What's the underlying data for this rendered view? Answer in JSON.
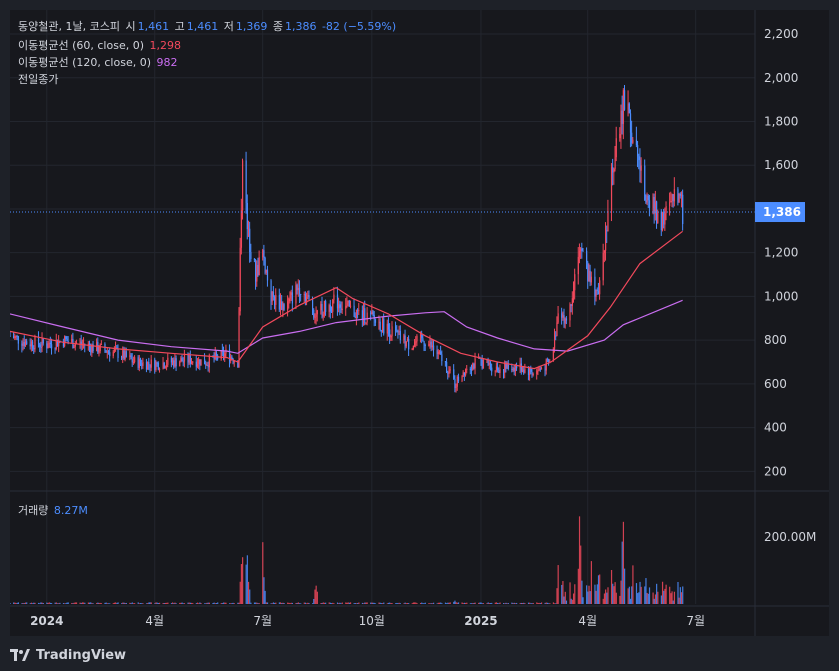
{
  "legend": {
    "title": "동양철관, 1날, 코스피",
    "open_label": "시",
    "open": "1,461",
    "high_label": "고",
    "high": "1,461",
    "low_label": "저",
    "low": "1,369",
    "close_label": "종",
    "close": "1,386",
    "change": "-82 (−5.59%)",
    "ma60_label": "이동평균선 (60, close, 0)",
    "ma60_value": "1,298",
    "ma120_label": "이동평균선 (120, close, 0)",
    "ma120_value": "982",
    "prev_close_label": "전일종가",
    "volume_label": "거래량",
    "volume_value": "8.27M"
  },
  "price_tag": "1,386",
  "footer": {
    "brand": "TradingView"
  },
  "colors": {
    "up": "#f2495c",
    "down": "#4c8dff",
    "ma60": "#f2495c",
    "ma120": "#c96df0",
    "background": "#17181d"
  },
  "chart_data": {
    "type": "candlestick",
    "x_ticks": [
      "2024",
      "4월",
      "7월",
      "10월",
      "2025",
      "4월",
      "7월"
    ],
    "y_ticks": [
      "200",
      "400",
      "600",
      "800",
      "1,000",
      "1,200",
      "1,400",
      "1,600",
      "1,800",
      "2,000",
      "2,200"
    ],
    "ylim": [
      110,
      2310
    ],
    "volume_tick": "200.00M",
    "price_series": [
      [
        "2023-12-01",
        820
      ],
      [
        "2023-12-15",
        790
      ],
      [
        "2024-01-01",
        780
      ],
      [
        "2024-01-15",
        800
      ],
      [
        "2024-02-01",
        780
      ],
      [
        "2024-02-15",
        760
      ],
      [
        "2024-03-01",
        740
      ],
      [
        "2024-03-15",
        700
      ],
      [
        "2024-04-01",
        690
      ],
      [
        "2024-04-15",
        700
      ],
      [
        "2024-05-01",
        710
      ],
      [
        "2024-05-15",
        700
      ],
      [
        "2024-06-01",
        740
      ],
      [
        "2024-06-10",
        700
      ],
      [
        "2024-06-14",
        1680
      ],
      [
        "2024-06-18",
        1300
      ],
      [
        "2024-06-25",
        1100
      ],
      [
        "2024-07-01",
        1200
      ],
      [
        "2024-07-08",
        1000
      ],
      [
        "2024-07-20",
        950
      ],
      [
        "2024-08-01",
        1050
      ],
      [
        "2024-08-15",
        920
      ],
      [
        "2024-09-01",
        980
      ],
      [
        "2024-09-15",
        930
      ],
      [
        "2024-10-01",
        900
      ],
      [
        "2024-10-15",
        850
      ],
      [
        "2024-11-01",
        780
      ],
      [
        "2024-11-15",
        800
      ],
      [
        "2024-12-01",
        700
      ],
      [
        "2024-12-10",
        600
      ],
      [
        "2024-12-20",
        680
      ],
      [
        "2025-01-01",
        700
      ],
      [
        "2025-01-15",
        670
      ],
      [
        "2025-02-01",
        680
      ],
      [
        "2025-02-15",
        650
      ],
      [
        "2025-03-01",
        700
      ],
      [
        "2025-03-08",
        950
      ],
      [
        "2025-03-15",
        880
      ],
      [
        "2025-03-25",
        1250
      ],
      [
        "2025-04-01",
        1100
      ],
      [
        "2025-04-10",
        1000
      ],
      [
        "2025-04-20",
        1500
      ],
      [
        "2025-05-01",
        1900
      ],
      [
        "2025-05-10",
        1700
      ],
      [
        "2025-05-20",
        1450
      ],
      [
        "2025-06-01",
        1350
      ],
      [
        "2025-06-10",
        1400
      ],
      [
        "2025-06-15",
        1500
      ],
      [
        "2025-06-20",
        1386
      ]
    ],
    "ma60_series": [
      [
        "2023-12-01",
        840
      ],
      [
        "2024-01-15",
        790
      ],
      [
        "2024-03-01",
        760
      ],
      [
        "2024-04-15",
        740
      ],
      [
        "2024-06-01",
        720
      ],
      [
        "2024-06-10",
        700
      ],
      [
        "2024-07-01",
        860
      ],
      [
        "2024-08-01",
        960
      ],
      [
        "2024-09-01",
        1040
      ],
      [
        "2024-09-15",
        990
      ],
      [
        "2024-10-15",
        920
      ],
      [
        "2024-11-15",
        820
      ],
      [
        "2024-12-15",
        740
      ],
      [
        "2025-01-15",
        700
      ],
      [
        "2025-02-15",
        670
      ],
      [
        "2025-03-01",
        700
      ],
      [
        "2025-04-01",
        820
      ],
      [
        "2025-04-20",
        950
      ],
      [
        "2025-05-15",
        1150
      ],
      [
        "2025-06-20",
        1298
      ]
    ],
    "ma120_series": [
      [
        "2023-12-01",
        920
      ],
      [
        "2024-01-15",
        860
      ],
      [
        "2024-03-01",
        800
      ],
      [
        "2024-04-15",
        770
      ],
      [
        "2024-06-01",
        750
      ],
      [
        "2024-06-10",
        740
      ],
      [
        "2024-07-01",
        810
      ],
      [
        "2024-08-01",
        840
      ],
      [
        "2024-09-01",
        880
      ],
      [
        "2024-10-15",
        910
      ],
      [
        "2024-11-15",
        925
      ],
      [
        "2024-12-01",
        930
      ],
      [
        "2024-12-20",
        860
      ],
      [
        "2025-01-15",
        810
      ],
      [
        "2025-02-15",
        760
      ],
      [
        "2025-03-15",
        750
      ],
      [
        "2025-04-15",
        800
      ],
      [
        "2025-05-01",
        870
      ],
      [
        "2025-06-20",
        982
      ]
    ],
    "volume_series": [
      [
        "2024-06-14",
        230
      ],
      [
        "2024-06-18",
        200
      ],
      [
        "2024-07-01",
        180
      ],
      [
        "2024-08-15",
        60
      ],
      [
        "2024-12-10",
        15
      ],
      [
        "2025-03-08",
        200
      ],
      [
        "2025-03-25",
        260
      ],
      [
        "2025-04-05",
        180
      ],
      [
        "2025-04-10",
        140
      ],
      [
        "2025-04-20",
        150
      ],
      [
        "2025-05-01",
        260
      ],
      [
        "2025-05-10",
        180
      ],
      [
        "2025-05-20",
        80
      ],
      [
        "2025-06-10",
        40
      ],
      [
        "2025-06-20",
        8.27
      ]
    ]
  }
}
